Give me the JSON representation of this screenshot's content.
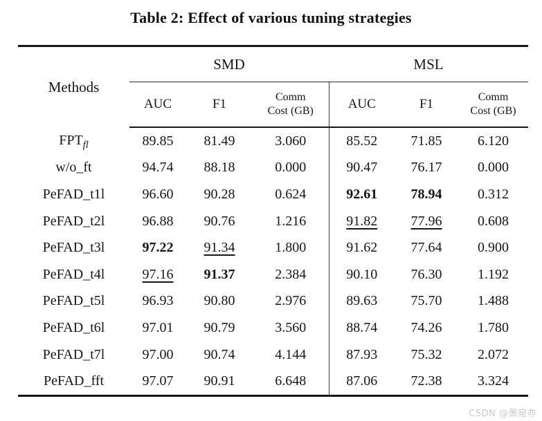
{
  "page": {
    "title": "Table 2: Effect of various tuning strategies",
    "watermark": "CSDN @萧宛亦"
  },
  "table": {
    "group_headers": {
      "methods": "Methods",
      "smd": "SMD",
      "msl": "MSL"
    },
    "sub_headers": [
      "AUC",
      "F1",
      "Comm\nCost (GB)",
      "AUC",
      "F1",
      "Comm\nCost (GB)"
    ],
    "rows": [
      {
        "method": "FPT",
        "method_sub": "fl",
        "cells": [
          {
            "v": "89.85",
            "s": ""
          },
          {
            "v": "81.49",
            "s": ""
          },
          {
            "v": "3.060",
            "s": ""
          },
          {
            "v": "85.52",
            "s": ""
          },
          {
            "v": "71.85",
            "s": ""
          },
          {
            "v": "6.120",
            "s": ""
          }
        ]
      },
      {
        "method": "w/o_ft",
        "method_sub": "",
        "cells": [
          {
            "v": "94.74",
            "s": ""
          },
          {
            "v": "88.18",
            "s": ""
          },
          {
            "v": "0.000",
            "s": ""
          },
          {
            "v": "90.47",
            "s": ""
          },
          {
            "v": "76.17",
            "s": ""
          },
          {
            "v": "0.000",
            "s": ""
          }
        ]
      },
      {
        "method": "PeFAD_t1l",
        "method_sub": "",
        "cells": [
          {
            "v": "96.60",
            "s": ""
          },
          {
            "v": "90.28",
            "s": ""
          },
          {
            "v": "0.624",
            "s": ""
          },
          {
            "v": "92.61",
            "s": "b"
          },
          {
            "v": "78.94",
            "s": "b"
          },
          {
            "v": "0.312",
            "s": ""
          }
        ]
      },
      {
        "method": "PeFAD_t2l",
        "method_sub": "",
        "cells": [
          {
            "v": "96.88",
            "s": ""
          },
          {
            "v": "90.76",
            "s": ""
          },
          {
            "v": "1.216",
            "s": ""
          },
          {
            "v": "91.82",
            "s": "u"
          },
          {
            "v": "77.96",
            "s": "u"
          },
          {
            "v": "0.608",
            "s": ""
          }
        ]
      },
      {
        "method": "PeFAD_t3l",
        "method_sub": "",
        "cells": [
          {
            "v": "97.22",
            "s": "b"
          },
          {
            "v": "91.34",
            "s": "u"
          },
          {
            "v": "1.800",
            "s": ""
          },
          {
            "v": "91.62",
            "s": ""
          },
          {
            "v": "77.64",
            "s": ""
          },
          {
            "v": "0.900",
            "s": ""
          }
        ]
      },
      {
        "method": "PeFAD_t4l",
        "method_sub": "",
        "cells": [
          {
            "v": "97.16",
            "s": "u"
          },
          {
            "v": "91.37",
            "s": "b"
          },
          {
            "v": "2.384",
            "s": ""
          },
          {
            "v": "90.10",
            "s": ""
          },
          {
            "v": "76.30",
            "s": ""
          },
          {
            "v": "1.192",
            "s": ""
          }
        ]
      },
      {
        "method": "PeFAD_t5l",
        "method_sub": "",
        "cells": [
          {
            "v": "96.93",
            "s": ""
          },
          {
            "v": "90.80",
            "s": ""
          },
          {
            "v": "2.976",
            "s": ""
          },
          {
            "v": "89.63",
            "s": ""
          },
          {
            "v": "75.70",
            "s": ""
          },
          {
            "v": "1.488",
            "s": ""
          }
        ]
      },
      {
        "method": "PeFAD_t6l",
        "method_sub": "",
        "cells": [
          {
            "v": "97.01",
            "s": ""
          },
          {
            "v": "90.79",
            "s": ""
          },
          {
            "v": "3.560",
            "s": ""
          },
          {
            "v": "88.74",
            "s": ""
          },
          {
            "v": "74.26",
            "s": ""
          },
          {
            "v": "1.780",
            "s": ""
          }
        ]
      },
      {
        "method": "PeFAD_t7l",
        "method_sub": "",
        "cells": [
          {
            "v": "97.00",
            "s": ""
          },
          {
            "v": "90.74",
            "s": ""
          },
          {
            "v": "4.144",
            "s": ""
          },
          {
            "v": "87.93",
            "s": ""
          },
          {
            "v": "75.32",
            "s": ""
          },
          {
            "v": "2.072",
            "s": ""
          }
        ]
      },
      {
        "method": "PeFAD_fft",
        "method_sub": "",
        "cells": [
          {
            "v": "97.07",
            "s": ""
          },
          {
            "v": "90.91",
            "s": ""
          },
          {
            "v": "6.648",
            "s": ""
          },
          {
            "v": "87.06",
            "s": ""
          },
          {
            "v": "72.38",
            "s": ""
          },
          {
            "v": "3.324",
            "s": ""
          }
        ]
      }
    ]
  }
}
